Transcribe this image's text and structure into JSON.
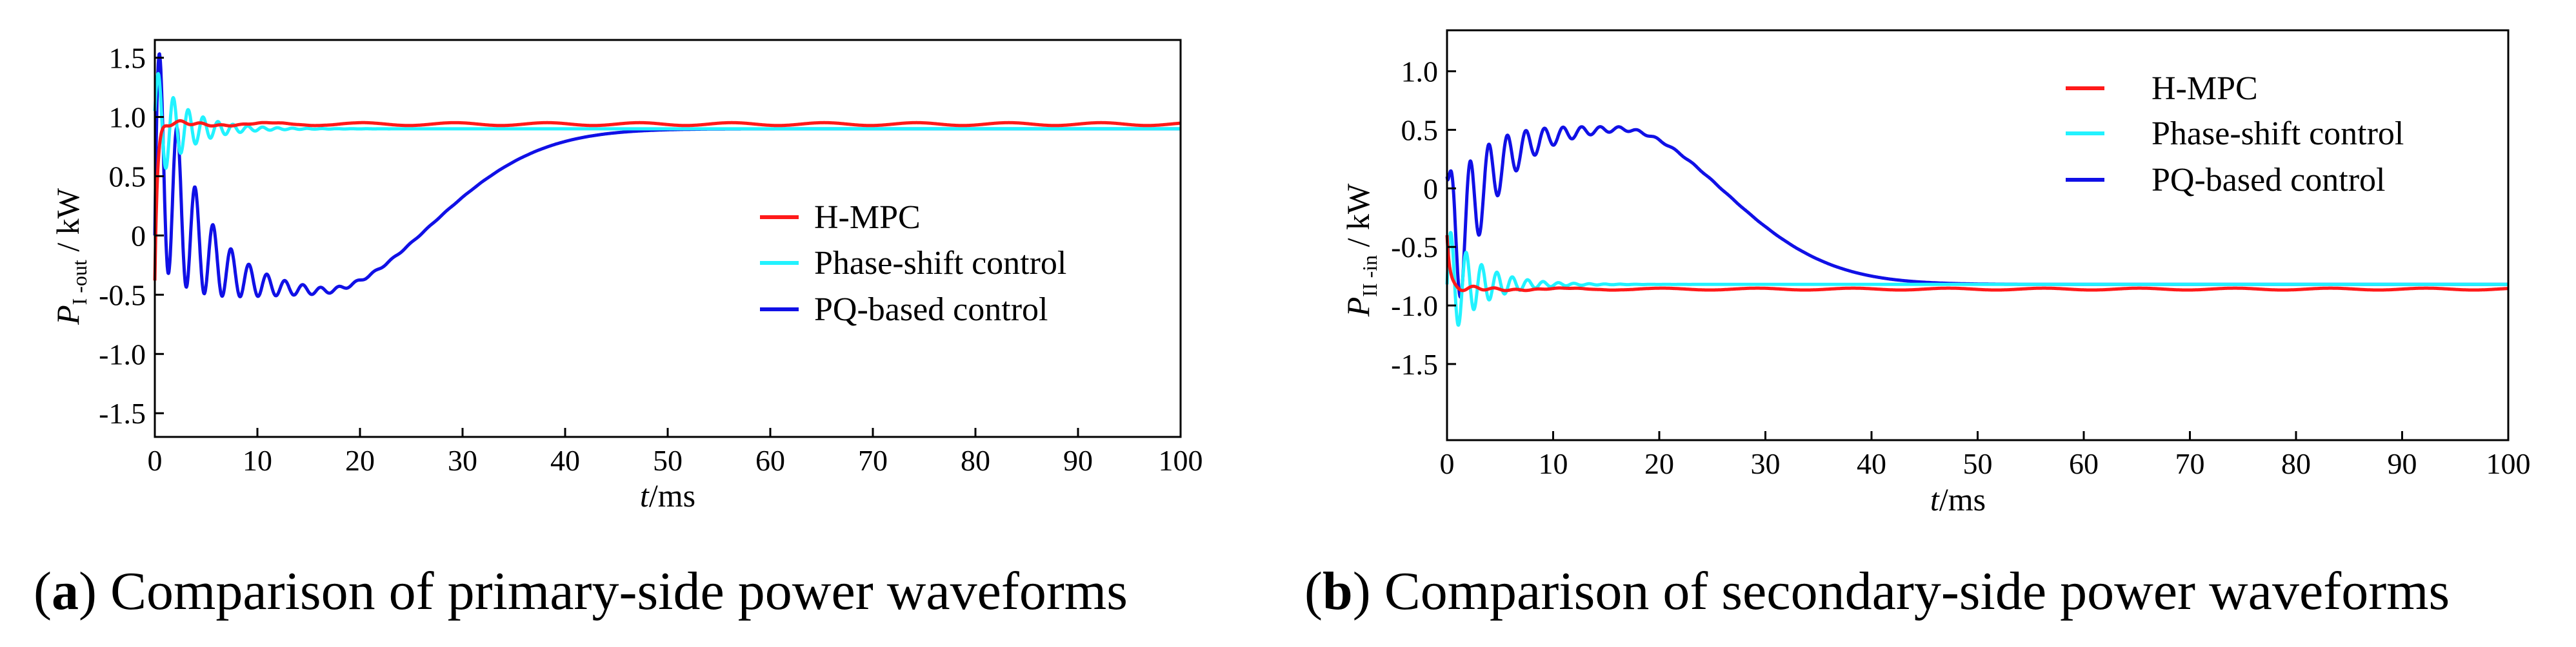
{
  "chart_data": [
    {
      "type": "line",
      "panel": "a",
      "caption_letter": "a",
      "caption_text": "Comparison of primary-side power waveforms",
      "ylabel_main": "P",
      "ylabel_sub": "I -out",
      "ylabel_unit": " / kW",
      "xlabel_main": "t",
      "xlabel_unit": "/ms",
      "xlim": [
        0,
        100
      ],
      "ylim": [
        -1.7,
        1.65
      ],
      "xticks": [
        0,
        10,
        20,
        30,
        40,
        50,
        60,
        70,
        80,
        90,
        100
      ],
      "yticks": [
        -1.5,
        -1.0,
        -0.5,
        0,
        0.5,
        1.0,
        1.5
      ],
      "ytick_labels": [
        "-1.5",
        "-1.0",
        "-0.5",
        "0",
        "0.5",
        "1.0",
        "1.5"
      ],
      "legend_position": "center-right",
      "series": [
        {
          "name": "H-MPC",
          "color": "#ff1a1a",
          "final": 0.94,
          "start": -0.38,
          "osc_amp": 0.03,
          "osc_decay": 4,
          "ripple": 0.012,
          "hump_amp": 0,
          "hump_peak": 0,
          "hump_tau": 1,
          "osc_period": 2
        },
        {
          "name": "Phase-shift control",
          "color": "#22f2ff",
          "final": 0.9,
          "start": 1.05,
          "osc_amp": 0.48,
          "osc_decay": 3.0,
          "ripple": 0,
          "hump_amp": 0,
          "hump_peak": 0,
          "hump_tau": 1,
          "osc_period": 1.45
        },
        {
          "name": "PQ-based control",
          "color": "#1010e6",
          "final": 0.9,
          "start": 0.0,
          "osc_amp": 1.05,
          "osc_decay": 4.5,
          "ripple": 0,
          "hump_amp": -1.38,
          "hump_peak": 16,
          "hump_tau": 15,
          "osc_period": 1.75
        }
      ]
    },
    {
      "type": "line",
      "panel": "b",
      "caption_letter": "b",
      "caption_text": "Comparison of secondary-side power waveforms",
      "ylabel_main": "P",
      "ylabel_sub": "II -in",
      "ylabel_unit": " / kW",
      "xlabel_main": "t",
      "xlabel_unit": "/ms",
      "xlim": [
        0,
        100
      ],
      "ylim": [
        -2.15,
        1.35
      ],
      "xticks": [
        0,
        10,
        20,
        30,
        40,
        50,
        60,
        70,
        80,
        90,
        100
      ],
      "yticks": [
        -1.5,
        -1.0,
        -0.5,
        0,
        0.5,
        1.0
      ],
      "ytick_labels": [
        "-1.5",
        "-1.0",
        "-0.5",
        "0",
        "0.5",
        "1.0"
      ],
      "legend_position": "top-right",
      "series": [
        {
          "name": "H-MPC",
          "color": "#ff1a1a",
          "final": -0.86,
          "start": -0.4,
          "osc_amp": 0.03,
          "osc_decay": 4,
          "ripple": 0.008,
          "hump_amp": 0,
          "hump_peak": 0,
          "hump_tau": 1,
          "osc_period": 2
        },
        {
          "name": "Phase-shift control",
          "color": "#22f2ff",
          "final": -0.82,
          "start": -0.82,
          "osc_amp": 0.5,
          "osc_decay": 3.0,
          "ripple": 0,
          "hump_amp": 0,
          "hump_peak": 0,
          "hump_tau": 1,
          "osc_period": 1.45
        },
        {
          "name": "PQ-based control",
          "color": "#1010e6",
          "final": -0.82,
          "start": 0.1,
          "osc_amp": 0.7,
          "osc_decay": 4.5,
          "ripple": 0,
          "hump_amp": 1.34,
          "hump_peak": 16,
          "hump_tau": 14,
          "osc_period": 1.75
        }
      ]
    }
  ]
}
